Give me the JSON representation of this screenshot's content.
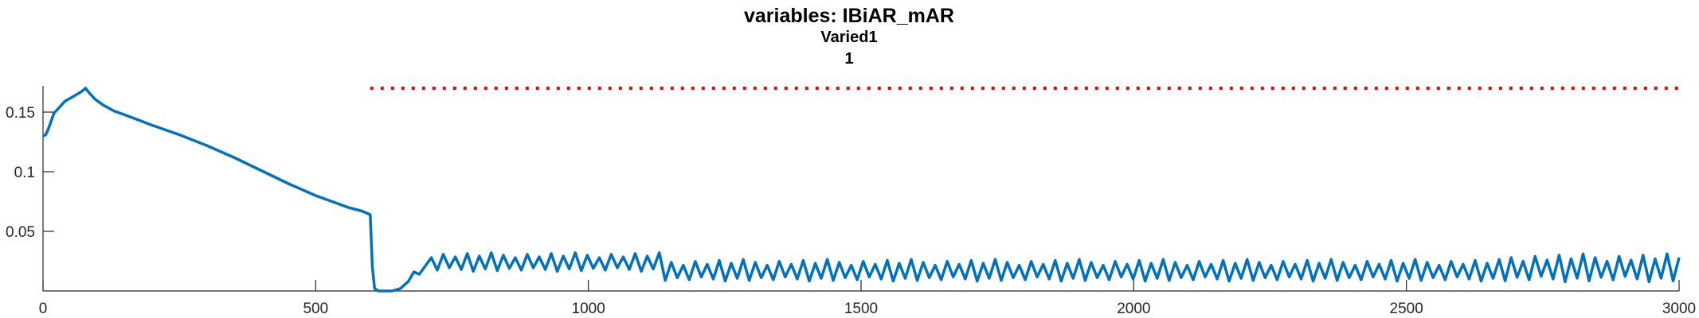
{
  "chart_data": {
    "type": "line",
    "title": "variables: IBiAR_mAR",
    "subtitle_lines": [
      "Varied1",
      "1"
    ],
    "xlabel": "",
    "ylabel": "",
    "xlim": [
      0,
      3000
    ],
    "ylim": [
      0,
      0.172
    ],
    "xticks": [
      0,
      500,
      1000,
      1500,
      2000,
      2500,
      3000
    ],
    "xtick_labels": [
      "0",
      "500",
      "1000",
      "1500",
      "2000",
      "2500",
      "3000"
    ],
    "yticks": [
      0.05,
      0.1,
      0.15
    ],
    "ytick_labels": [
      "0.05",
      "0.1",
      "0.15"
    ],
    "grid": false,
    "series": [
      {
        "color": "#0072BD",
        "style": "solid",
        "x": [
          0,
          5,
          10,
          20,
          30,
          40,
          55,
          70,
          78,
          85,
          95,
          110,
          130,
          160,
          200,
          250,
          300,
          350,
          400,
          450,
          500,
          530,
          560,
          585,
          600,
          604,
          608,
          615,
          640,
          655,
          670,
          680,
          690
        ],
        "values": [
          0.13,
          0.131,
          0.136,
          0.149,
          0.154,
          0.159,
          0.163,
          0.167,
          0.17,
          0.166,
          0.161,
          0.156,
          0.151,
          0.146,
          0.139,
          0.131,
          0.122,
          0.112,
          0.101,
          0.09,
          0.08,
          0.075,
          0.07,
          0.067,
          0.064,
          0.02,
          0.002,
          0.0,
          0.0,
          0.002,
          0.008,
          0.016,
          0.014
        ],
        "oscillation": {
          "x_start": 690,
          "x_end": 3000,
          "period": 22,
          "segments": [
            {
              "x_from": 690,
              "x_to": 1140,
              "low": 0.018,
              "high": 0.03
            },
            {
              "x_from": 1140,
              "x_to": 2680,
              "low": 0.01,
              "high": 0.024
            },
            {
              "x_from": 2680,
              "x_to": 3000,
              "low": 0.01,
              "high": 0.028
            }
          ]
        }
      },
      {
        "color": "#FF0000",
        "style": "dotted",
        "x": [
          600,
          3000
        ],
        "values": [
          0.17,
          0.17
        ]
      }
    ]
  }
}
